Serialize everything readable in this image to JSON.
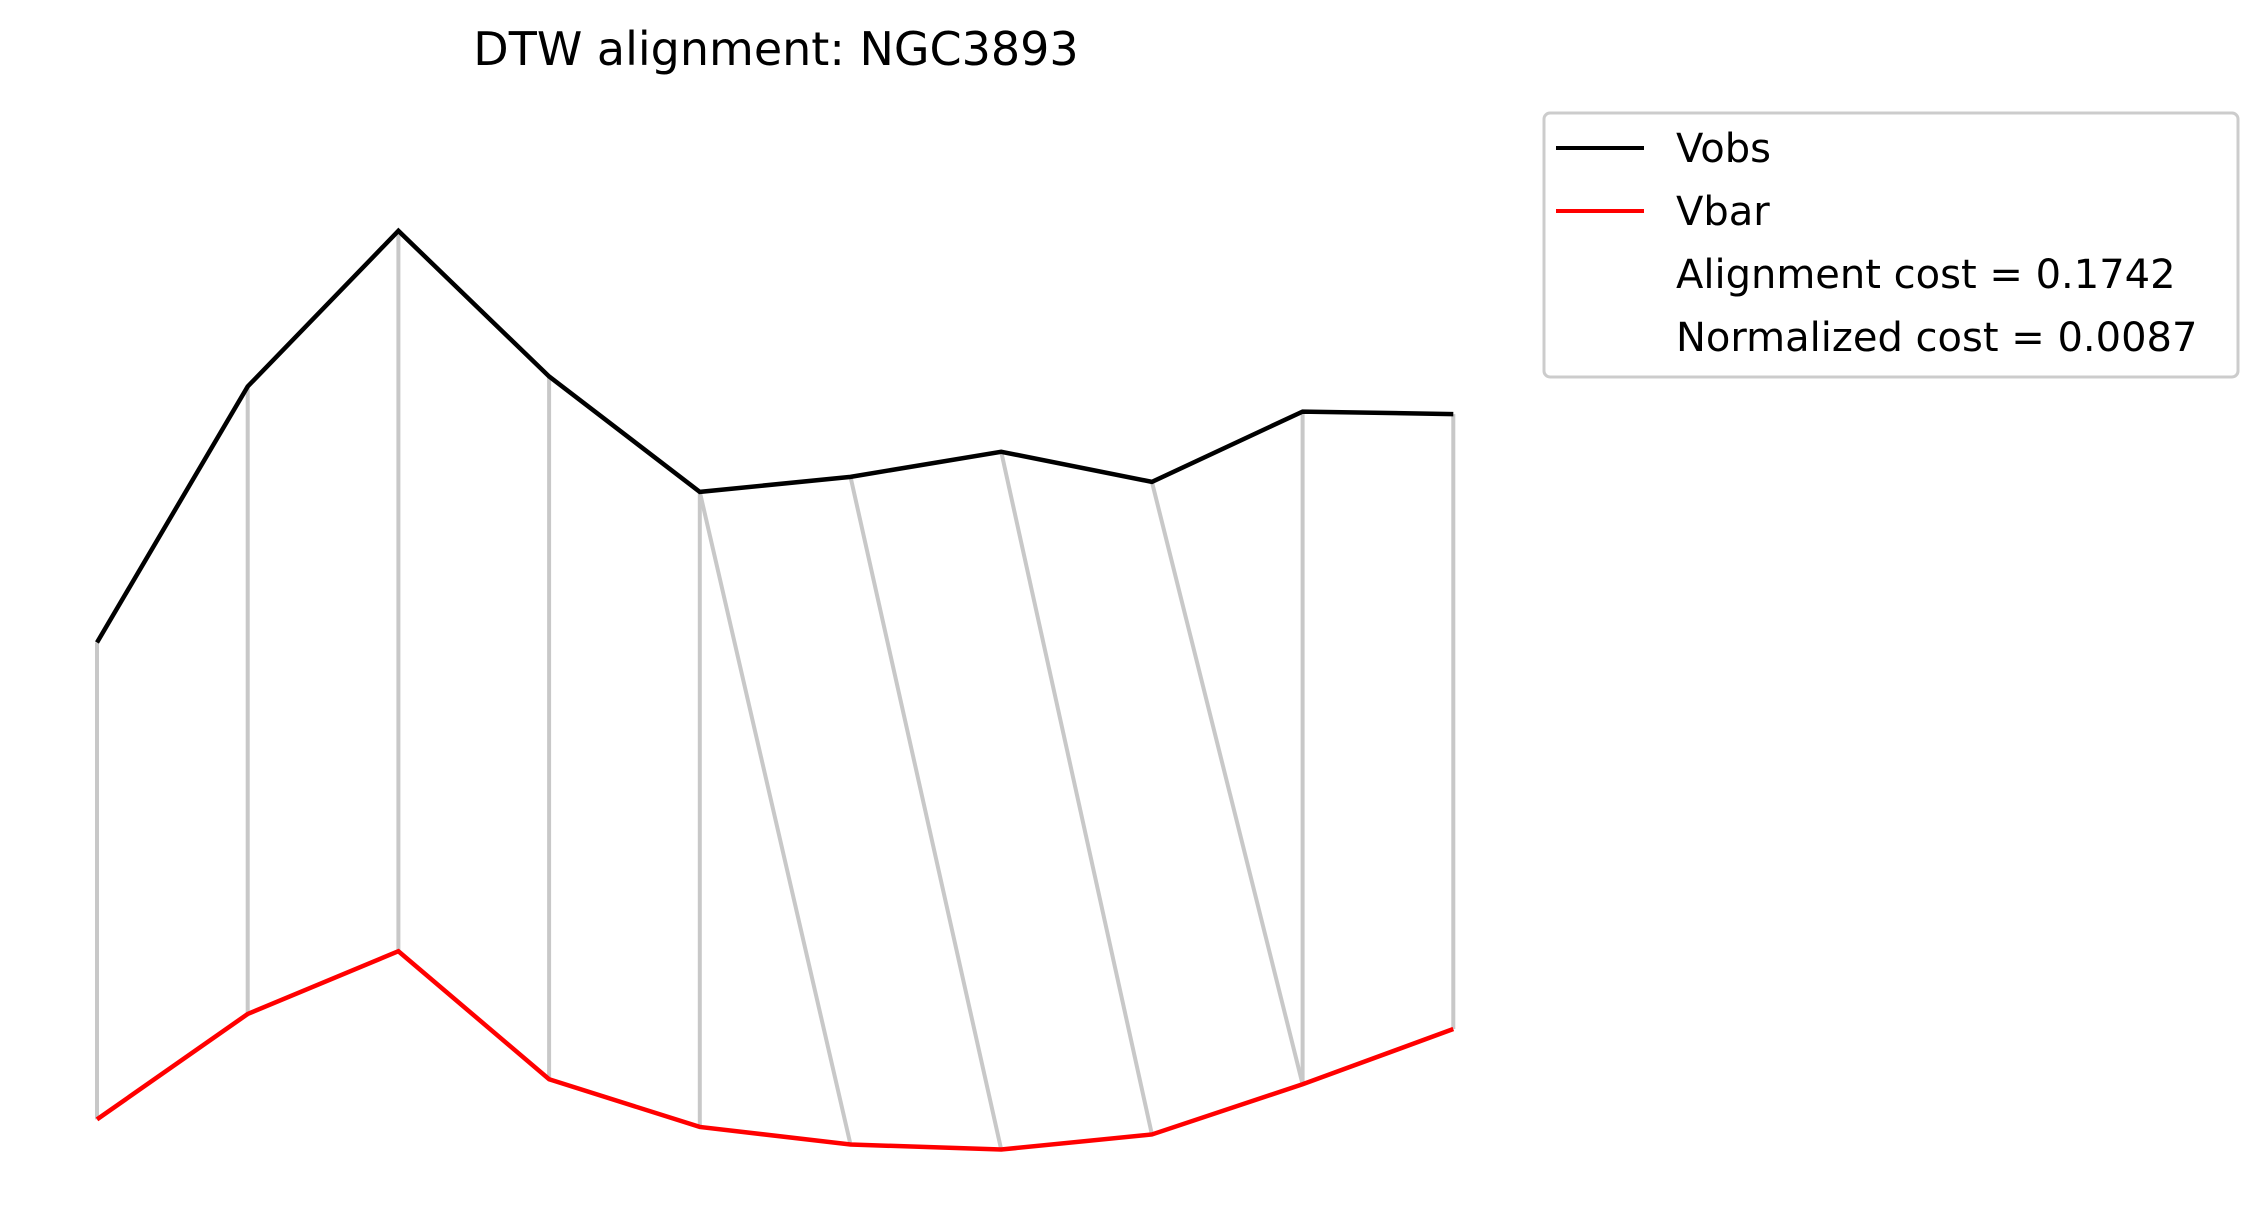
{
  "chart_data": {
    "type": "line",
    "title": "DTW alignment: NGC3893",
    "xlabel": "",
    "ylabel": "",
    "axes_visible": false,
    "grid": false,
    "legend_placement": "outside-top-right",
    "x": [
      0,
      1,
      2,
      3,
      4,
      5,
      6,
      7,
      8,
      9
    ],
    "series": [
      {
        "name": "Vobs",
        "color": "#000000",
        "values": [
          0.5,
          1.52,
          2.14,
          1.56,
          1.1,
          1.16,
          1.26,
          1.14,
          1.42,
          1.41
        ]
      },
      {
        "name": "Vbar",
        "color": "#ff0000",
        "values": [
          -1.4,
          -0.98,
          -0.73,
          -1.24,
          -1.43,
          -1.5,
          -1.52,
          -1.46,
          -1.26,
          -1.04
        ]
      }
    ],
    "alignment": {
      "color": "#c8c8c8",
      "pairs": [
        [
          0,
          0
        ],
        [
          1,
          1
        ],
        [
          2,
          2
        ],
        [
          3,
          3
        ],
        [
          4,
          4
        ],
        [
          4,
          5
        ],
        [
          5,
          6
        ],
        [
          6,
          7
        ],
        [
          7,
          8
        ],
        [
          8,
          8
        ],
        [
          9,
          9
        ]
      ]
    },
    "legend": {
      "entries": [
        {
          "label": "Vobs",
          "color": "#000000"
        },
        {
          "label": "Vbar",
          "color": "#ff0000"
        }
      ],
      "texts": [
        "Alignment cost = 0.1742",
        "Normalized cost = 0.0087"
      ]
    }
  }
}
